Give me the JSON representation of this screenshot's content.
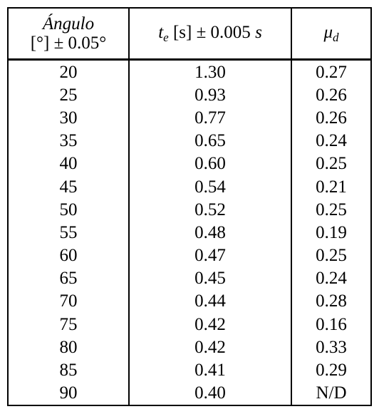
{
  "table": {
    "header": [
      [
        "Ángulo",
        "[°] ± 0.05°"
      ],
      [
        "t",
        "e",
        "[s] ± 0.005",
        "s"
      ],
      [
        "μ",
        "d"
      ]
    ],
    "rows": [
      [
        "20",
        "1.30",
        "0.27"
      ],
      [
        "25",
        "0.93",
        "0.26"
      ],
      [
        "30",
        "0.77",
        "0.26"
      ],
      [
        "35",
        "0.65",
        "0.24"
      ],
      [
        "40",
        "0.60",
        "0.25"
      ],
      [
        "45",
        "0.54",
        "0.21"
      ],
      [
        "50",
        "0.52",
        "0.25"
      ],
      [
        "55",
        "0.48",
        "0.19"
      ],
      [
        "60",
        "0.47",
        "0.25"
      ],
      [
        "65",
        "0.45",
        "0.24"
      ],
      [
        "70",
        "0.44",
        "0.28"
      ],
      [
        "75",
        "0.42",
        "0.16"
      ],
      [
        "80",
        "0.42",
        "0.33"
      ],
      [
        "85",
        "0.41",
        "0.29"
      ],
      [
        "90",
        "0.40",
        "N/D"
      ]
    ]
  }
}
